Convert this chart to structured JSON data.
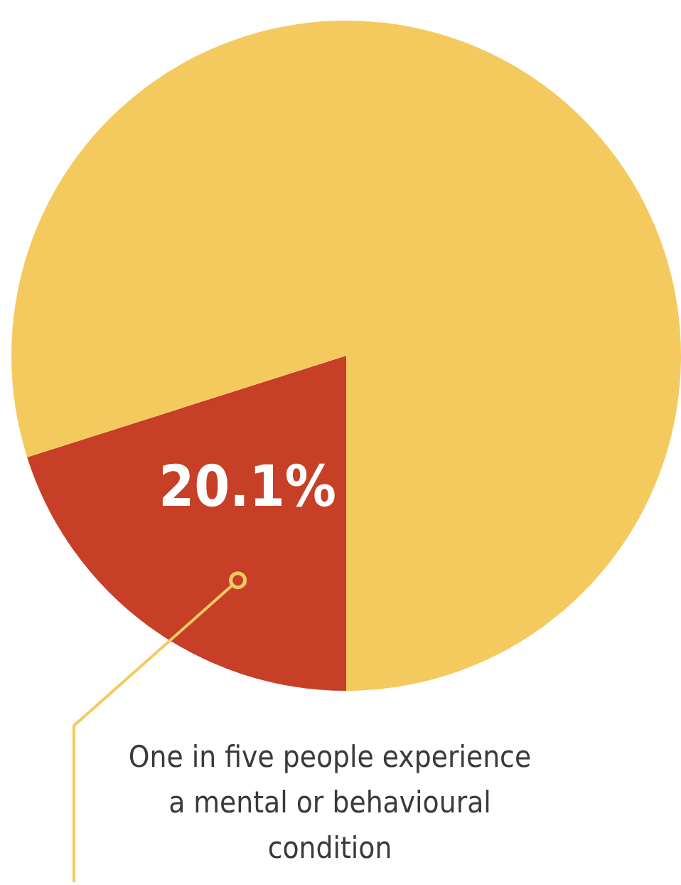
{
  "chart_data": {
    "type": "pie",
    "categories": [
      null,
      null
    ],
    "values": [
      20.1,
      79.9
    ],
    "colors": [
      "#c63f26",
      "#f4ca5f"
    ],
    "value_labels": [
      "20.1%",
      null
    ],
    "legend": false,
    "annotations": [
      "One in five people experience a mental or behavioural condition"
    ]
  }
}
